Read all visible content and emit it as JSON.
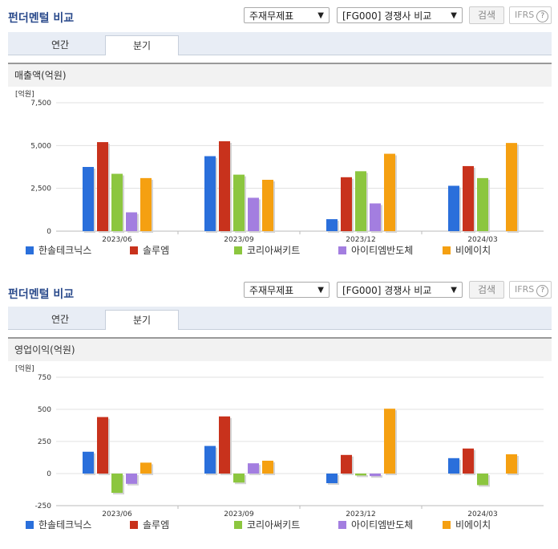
{
  "panels": [
    {
      "title": "펀더멘털 비교",
      "select1": "주재무제표",
      "select2": "[FG000] 경쟁사 비교",
      "search_label": "검색",
      "ifrs_label": "IFRS",
      "tabs": [
        "연간",
        "분기"
      ],
      "active_tab": 1
    },
    {
      "title": "펀더멘털 비교",
      "select1": "주재무제표",
      "select2": "[FG000] 경쟁사 비교",
      "search_label": "검색",
      "ifrs_label": "IFRS",
      "tabs": [
        "연간",
        "분기"
      ],
      "active_tab": 1
    }
  ],
  "chart_data": [
    {
      "type": "bar",
      "title": "매출액(억원)",
      "unit_label": "[억원]",
      "categories": [
        "2023/06",
        "2023/09",
        "2023/12",
        "2024/03"
      ],
      "ylim": [
        0,
        7500
      ],
      "yticks": [
        0,
        2500,
        5000,
        7500
      ],
      "ytick_labels": [
        "0",
        "2,500",
        "5,000",
        "7,500"
      ],
      "grid": true,
      "legend_position": "bottom",
      "series": [
        {
          "name": "한솔테크닉스",
          "color": "#2a6fdb",
          "values": [
            3750,
            4380,
            700,
            2650
          ]
        },
        {
          "name": "솔루엠",
          "color": "#c8321c",
          "values": [
            5200,
            5250,
            3150,
            3800
          ]
        },
        {
          "name": "코리아써키트",
          "color": "#8cc63f",
          "values": [
            3350,
            3300,
            3500,
            3100
          ]
        },
        {
          "name": "아이티엠반도체",
          "color": "#a37ee0",
          "values": [
            1100,
            1950,
            1620,
            null
          ]
        },
        {
          "name": "비에이치",
          "color": "#f5a011",
          "values": [
            3100,
            3000,
            4520,
            5150
          ]
        }
      ]
    },
    {
      "type": "bar",
      "title": "영업이익(억원)",
      "unit_label": "[억원]",
      "categories": [
        "2023/06",
        "2023/09",
        "2023/12",
        "2024/03"
      ],
      "ylim": [
        -250,
        750
      ],
      "yticks": [
        -250,
        0,
        250,
        500,
        750
      ],
      "ytick_labels": [
        "-250",
        "0",
        "250",
        "500",
        "750"
      ],
      "grid": true,
      "legend_position": "bottom",
      "series": [
        {
          "name": "한솔테크닉스",
          "color": "#2a6fdb",
          "values": [
            170,
            215,
            -75,
            120
          ]
        },
        {
          "name": "솔루엠",
          "color": "#c8321c",
          "values": [
            440,
            445,
            145,
            195
          ]
        },
        {
          "name": "코리아써키트",
          "color": "#8cc63f",
          "values": [
            -150,
            -70,
            -15,
            -90
          ]
        },
        {
          "name": "아이티엠반도체",
          "color": "#a37ee0",
          "values": [
            -80,
            80,
            -20,
            null
          ]
        },
        {
          "name": "비에이치",
          "color": "#f5a011",
          "values": [
            85,
            100,
            505,
            150
          ]
        }
      ]
    }
  ]
}
